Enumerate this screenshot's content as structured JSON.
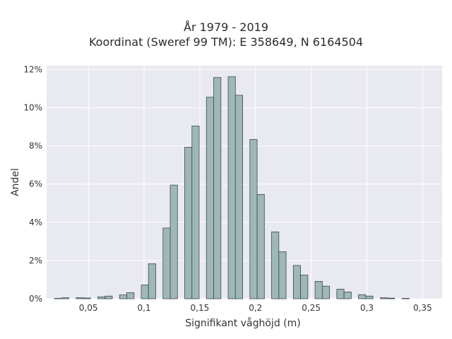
{
  "chart_data": {
    "type": "bar",
    "title": "År 1979 - 2019",
    "subtitle": "Koordinat (Sweref 99 TM): E 358649, N 6164504",
    "xlabel": "Signifikant våghöjd (m)",
    "ylabel": "Andel",
    "xlim": [
      0.0125,
      0.3675
    ],
    "ylim": [
      0,
      12.2
    ],
    "grid": true,
    "x_ticks": [
      {
        "value": 0.05,
        "label": "0,05"
      },
      {
        "value": 0.1,
        "label": "0,1"
      },
      {
        "value": 0.15,
        "label": "0,15"
      },
      {
        "value": 0.2,
        "label": "0,2"
      },
      {
        "value": 0.25,
        "label": "0,25"
      },
      {
        "value": 0.3,
        "label": "0,3"
      },
      {
        "value": 0.35,
        "label": "0,35"
      }
    ],
    "y_ticks": [
      {
        "value": 0,
        "label": "0%"
      },
      {
        "value": 2,
        "label": "2%"
      },
      {
        "value": 4,
        "label": "4%"
      },
      {
        "value": 6,
        "label": "6%"
      },
      {
        "value": 8,
        "label": "8%"
      },
      {
        "value": 10,
        "label": "10%"
      },
      {
        "value": 12,
        "label": "12%"
      }
    ],
    "bin_width": 0.0065,
    "x": [
      0.0227,
      0.0292,
      0.0422,
      0.0487,
      0.0617,
      0.0682,
      0.0812,
      0.0877,
      0.1007,
      0.1072,
      0.1202,
      0.1267,
      0.1397,
      0.1462,
      0.1592,
      0.1657,
      0.1787,
      0.1852,
      0.1982,
      0.2047,
      0.2177,
      0.2242,
      0.2372,
      0.2437,
      0.2567,
      0.2632,
      0.2762,
      0.2827,
      0.2957,
      0.3022,
      0.3152,
      0.3217,
      0.3347
    ],
    "values": [
      0.02,
      0.05,
      0.05,
      0.04,
      0.1,
      0.14,
      0.2,
      0.32,
      0.72,
      1.83,
      3.7,
      5.95,
      7.93,
      9.04,
      10.55,
      11.58,
      11.62,
      10.65,
      8.34,
      5.46,
      3.5,
      2.46,
      1.74,
      1.24,
      0.91,
      0.66,
      0.5,
      0.35,
      0.21,
      0.14,
      0.05,
      0.03,
      0.02
    ],
    "colors": {
      "bar_fill": "#9fb8b6",
      "bar_edge": "#3a4a48",
      "plot_bg": "#e9e9f1",
      "grid": "#ffffff"
    }
  }
}
